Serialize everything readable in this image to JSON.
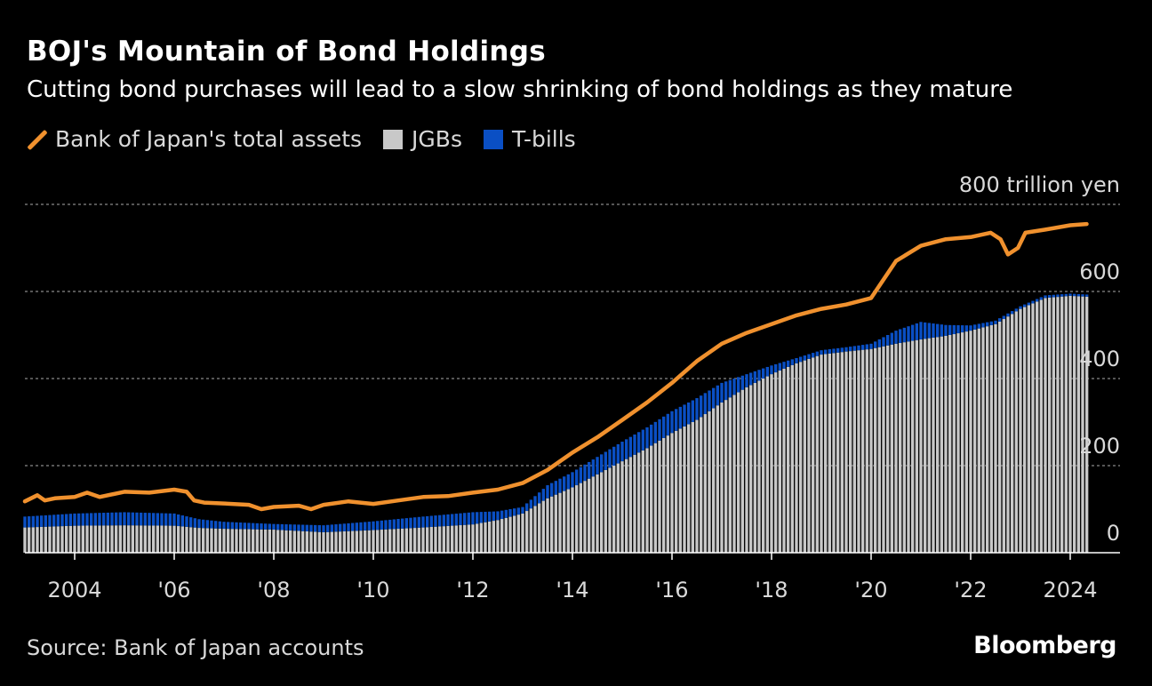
{
  "header": {
    "title": "BOJ's Mountain of Bond Holdings",
    "subtitle": "Cutting bond purchases will lead to a slow shrinking of bond holdings as they mature"
  },
  "legend": {
    "items": [
      {
        "label": "Bank of Japan's total assets",
        "color": "#f0912e",
        "kind": "line"
      },
      {
        "label": "JGBs",
        "color": "#c8c8c8",
        "kind": "box"
      },
      {
        "label": "T-bills",
        "color": "#0a4fc4",
        "kind": "box"
      }
    ]
  },
  "footer": {
    "source": "Source: Bank of Japan accounts",
    "brand": "Bloomberg"
  },
  "chart_data": {
    "type": "bar",
    "title": "BOJ's Mountain of Bond Holdings",
    "subtitle": "Cutting bond purchases will lead to a slow shrinking of bond holdings as they mature",
    "y_unit_label": "800 trillion yen",
    "ylim": [
      0,
      800
    ],
    "y_ticks": [
      {
        "value": 0,
        "label": "0"
      },
      {
        "value": 200,
        "label": "200"
      },
      {
        "value": 400,
        "label": "400"
      },
      {
        "value": 600,
        "label": "600"
      },
      {
        "value": 800,
        "label": "800 trillion yen"
      }
    ],
    "xlim": [
      2003.0,
      2025.0
    ],
    "x_ticks": [
      {
        "value": 2004,
        "label": "2004"
      },
      {
        "value": 2006,
        "label": "'06"
      },
      {
        "value": 2008,
        "label": "'08"
      },
      {
        "value": 2010,
        "label": "'10"
      },
      {
        "value": 2012,
        "label": "'12"
      },
      {
        "value": 2014,
        "label": "'14"
      },
      {
        "value": 2016,
        "label": "'16"
      },
      {
        "value": 2018,
        "label": "'18"
      },
      {
        "value": 2020,
        "label": "'20"
      },
      {
        "value": 2022,
        "label": "'22"
      },
      {
        "value": 2024,
        "label": "2024"
      }
    ],
    "grid": true,
    "legend_position": "top-left",
    "stacked": true,
    "series": [
      {
        "name": "JGBs",
        "kind": "bar",
        "color": "#c8c8c8",
        "points": [
          [
            2003.0,
            58
          ],
          [
            2004.0,
            62
          ],
          [
            2005.0,
            63
          ],
          [
            2006.0,
            62
          ],
          [
            2006.5,
            57
          ],
          [
            2007.0,
            55
          ],
          [
            2008.0,
            53
          ],
          [
            2009.0,
            47
          ],
          [
            2010.0,
            52
          ],
          [
            2011.0,
            58
          ],
          [
            2012.0,
            65
          ],
          [
            2012.5,
            75
          ],
          [
            2013.0,
            90
          ],
          [
            2013.5,
            125
          ],
          [
            2014.0,
            150
          ],
          [
            2014.5,
            180
          ],
          [
            2015.0,
            210
          ],
          [
            2015.5,
            240
          ],
          [
            2016.0,
            275
          ],
          [
            2016.5,
            305
          ],
          [
            2017.0,
            345
          ],
          [
            2017.5,
            380
          ],
          [
            2018.0,
            410
          ],
          [
            2018.5,
            435
          ],
          [
            2019.0,
            455
          ],
          [
            2019.5,
            462
          ],
          [
            2020.0,
            468
          ],
          [
            2020.5,
            480
          ],
          [
            2021.0,
            490
          ],
          [
            2021.5,
            498
          ],
          [
            2022.0,
            510
          ],
          [
            2022.5,
            525
          ],
          [
            2023.0,
            560
          ],
          [
            2023.5,
            585
          ],
          [
            2024.0,
            590
          ],
          [
            2024.33,
            588
          ]
        ]
      },
      {
        "name": "T-bills",
        "kind": "bar",
        "color": "#0a4fc4",
        "points": [
          [
            2003.0,
            25
          ],
          [
            2004.0,
            28
          ],
          [
            2005.0,
            30
          ],
          [
            2006.0,
            28
          ],
          [
            2006.5,
            20
          ],
          [
            2007.0,
            16
          ],
          [
            2008.0,
            13
          ],
          [
            2009.0,
            16
          ],
          [
            2010.0,
            20
          ],
          [
            2011.0,
            25
          ],
          [
            2012.0,
            28
          ],
          [
            2012.5,
            20
          ],
          [
            2013.0,
            15
          ],
          [
            2013.5,
            30
          ],
          [
            2014.0,
            35
          ],
          [
            2014.5,
            40
          ],
          [
            2015.0,
            45
          ],
          [
            2015.5,
            48
          ],
          [
            2016.0,
            50
          ],
          [
            2016.5,
            50
          ],
          [
            2017.0,
            45
          ],
          [
            2017.5,
            30
          ],
          [
            2018.0,
            20
          ],
          [
            2018.5,
            12
          ],
          [
            2019.0,
            10
          ],
          [
            2019.5,
            10
          ],
          [
            2020.0,
            12
          ],
          [
            2020.5,
            30
          ],
          [
            2021.0,
            40
          ],
          [
            2021.5,
            25
          ],
          [
            2022.0,
            12
          ],
          [
            2022.5,
            8
          ],
          [
            2023.0,
            6
          ],
          [
            2023.5,
            6
          ],
          [
            2024.0,
            5
          ],
          [
            2024.33,
            5
          ]
        ]
      },
      {
        "name": "Bank of Japan's total assets",
        "kind": "line",
        "color": "#f0912e",
        "points": [
          [
            2003.0,
            118
          ],
          [
            2003.25,
            132
          ],
          [
            2003.4,
            120
          ],
          [
            2003.6,
            125
          ],
          [
            2004.0,
            128
          ],
          [
            2004.25,
            138
          ],
          [
            2004.5,
            128
          ],
          [
            2005.0,
            140
          ],
          [
            2005.5,
            138
          ],
          [
            2006.0,
            145
          ],
          [
            2006.25,
            140
          ],
          [
            2006.4,
            120
          ],
          [
            2006.6,
            115
          ],
          [
            2007.0,
            113
          ],
          [
            2007.5,
            110
          ],
          [
            2007.75,
            100
          ],
          [
            2008.0,
            105
          ],
          [
            2008.5,
            108
          ],
          [
            2008.75,
            100
          ],
          [
            2009.0,
            110
          ],
          [
            2009.5,
            118
          ],
          [
            2010.0,
            112
          ],
          [
            2010.5,
            120
          ],
          [
            2011.0,
            128
          ],
          [
            2011.5,
            130
          ],
          [
            2012.0,
            138
          ],
          [
            2012.5,
            145
          ],
          [
            2013.0,
            160
          ],
          [
            2013.5,
            190
          ],
          [
            2014.0,
            230
          ],
          [
            2014.5,
            265
          ],
          [
            2015.0,
            305
          ],
          [
            2015.5,
            345
          ],
          [
            2016.0,
            390
          ],
          [
            2016.5,
            440
          ],
          [
            2017.0,
            480
          ],
          [
            2017.5,
            505
          ],
          [
            2018.0,
            525
          ],
          [
            2018.5,
            545
          ],
          [
            2019.0,
            560
          ],
          [
            2019.5,
            570
          ],
          [
            2020.0,
            585
          ],
          [
            2020.5,
            670
          ],
          [
            2021.0,
            705
          ],
          [
            2021.5,
            720
          ],
          [
            2022.0,
            725
          ],
          [
            2022.4,
            735
          ],
          [
            2022.6,
            720
          ],
          [
            2022.75,
            685
          ],
          [
            2022.95,
            700
          ],
          [
            2023.1,
            735
          ],
          [
            2023.5,
            742
          ],
          [
            2024.0,
            752
          ],
          [
            2024.33,
            755
          ]
        ]
      }
    ]
  }
}
